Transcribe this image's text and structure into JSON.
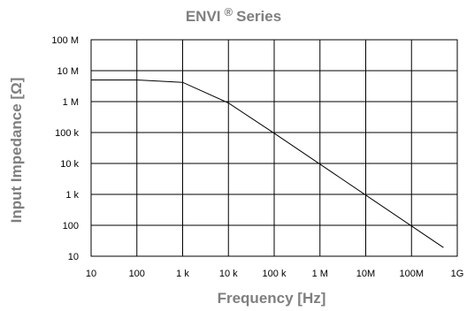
{
  "chart_data": {
    "type": "line",
    "title": "ENVI",
    "title_superscript": "®",
    "title_suffix": "Series",
    "xlabel": "Frequency [Hz]",
    "ylabel": "Input Impedance [Ω]",
    "x_scale": "log",
    "y_scale": "log",
    "xlim": [
      10,
      1000000000
    ],
    "ylim": [
      10,
      100000000
    ],
    "grid": true,
    "x_ticks": [
      {
        "value": 10,
        "label": "10"
      },
      {
        "value": 100,
        "label": "100"
      },
      {
        "value": 1000,
        "label": "1 k"
      },
      {
        "value": 10000,
        "label": "10 k"
      },
      {
        "value": 100000,
        "label": "100 k"
      },
      {
        "value": 1000000,
        "label": "1 M"
      },
      {
        "value": 10000000,
        "label": "10M"
      },
      {
        "value": 100000000,
        "label": "100M"
      },
      {
        "value": 1000000000,
        "label": "1G"
      }
    ],
    "y_ticks": [
      {
        "value": 10,
        "label": "10"
      },
      {
        "value": 100,
        "label": "100"
      },
      {
        "value": 1000,
        "label": "1 k"
      },
      {
        "value": 10000,
        "label": "10 k"
      },
      {
        "value": 100000,
        "label": "100 k"
      },
      {
        "value": 1000000,
        "label": "1 M"
      },
      {
        "value": 10000000,
        "label": "10 M"
      },
      {
        "value": 100000000,
        "label": "100 M"
      }
    ],
    "series": [
      {
        "points": [
          [
            10,
            5000000
          ],
          [
            100,
            5000000
          ],
          [
            1000,
            4200000
          ],
          [
            10000,
            900000
          ],
          [
            100000,
            95000
          ],
          [
            1000000,
            9500
          ],
          [
            10000000,
            950
          ],
          [
            100000000,
            95
          ],
          [
            500000000,
            19
          ]
        ]
      }
    ]
  }
}
